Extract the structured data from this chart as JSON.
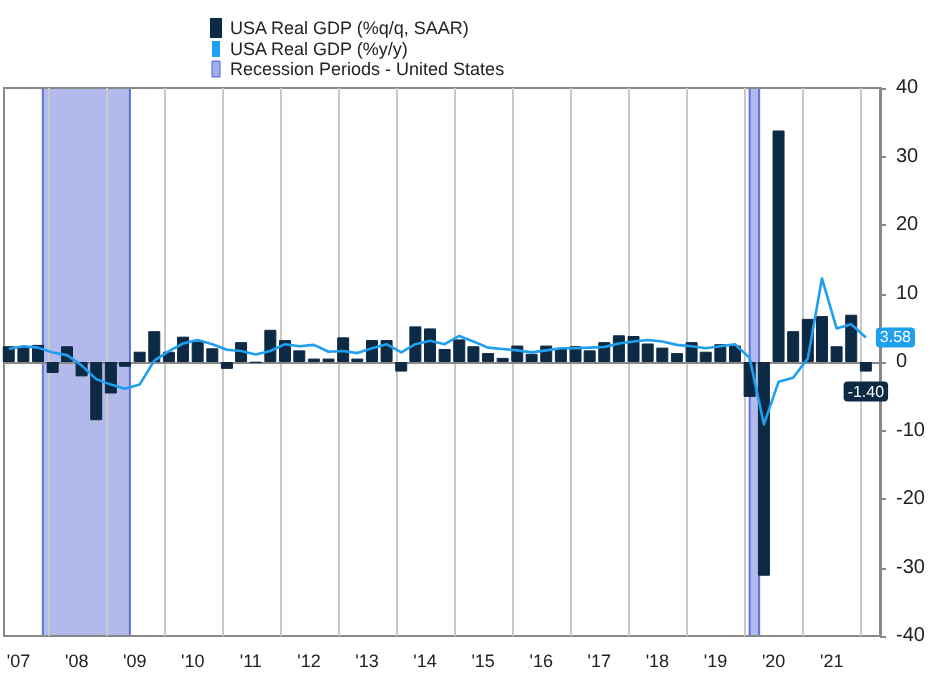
{
  "chart_data": {
    "type": "bar",
    "x": [
      "2007-05",
      "2007-08",
      "2007-11",
      "2008-02",
      "2008-05",
      "2008-08",
      "2008-11",
      "2009-02",
      "2009-05",
      "2009-08",
      "2009-11",
      "2010-02",
      "2010-05",
      "2010-08",
      "2010-11",
      "2011-02",
      "2011-05",
      "2011-08",
      "2011-11",
      "2012-02",
      "2012-05",
      "2012-08",
      "2012-11",
      "2013-02",
      "2013-05",
      "2013-08",
      "2013-11",
      "2014-02",
      "2014-05",
      "2014-08",
      "2014-11",
      "2015-02",
      "2015-05",
      "2015-08",
      "2015-11",
      "2016-02",
      "2016-05",
      "2016-08",
      "2016-11",
      "2017-02",
      "2017-05",
      "2017-08",
      "2017-11",
      "2018-02",
      "2018-05",
      "2018-08",
      "2018-11",
      "2019-02",
      "2019-05",
      "2019-08",
      "2019-11",
      "2020-02",
      "2020-05",
      "2020-08",
      "2020-11",
      "2021-02",
      "2021-05",
      "2021-08",
      "2021-11",
      "2022-02"
    ],
    "series": [
      {
        "name": "USA Real GDP (%q/q, SAAR)",
        "color": "#0d2a45",
        "values": [
          2.3,
          2.2,
          2.5,
          -1.6,
          2.3,
          -2.1,
          -8.5,
          -4.6,
          -0.7,
          1.5,
          4.5,
          1.5,
          3.7,
          3.0,
          2.0,
          -1.0,
          2.9,
          -0.1,
          4.7,
          3.2,
          1.7,
          0.5,
          0.5,
          3.6,
          0.5,
          3.2,
          3.2,
          -1.4,
          5.2,
          4.9,
          1.9,
          3.3,
          2.3,
          1.3,
          0.6,
          2.4,
          1.2,
          2.4,
          2.0,
          2.3,
          1.7,
          2.9,
          3.9,
          3.8,
          2.7,
          2.1,
          1.3,
          2.9,
          1.5,
          2.6,
          2.4,
          -5.1,
          -31.2,
          33.8,
          4.5,
          6.3,
          6.7,
          2.3,
          6.9,
          -1.4
        ],
        "value_labels": [
          null,
          null,
          null,
          null,
          null,
          null,
          null,
          null,
          null,
          null,
          null,
          null,
          null,
          null,
          null,
          null,
          null,
          null,
          null,
          null,
          null,
          null,
          null,
          null,
          null,
          null,
          null,
          null,
          null,
          null,
          null,
          null,
          null,
          null,
          null,
          null,
          null,
          null,
          null,
          null,
          null,
          null,
          null,
          null,
          null,
          null,
          null,
          null,
          null,
          null,
          null,
          null,
          null,
          null,
          null,
          null,
          null,
          null,
          null,
          "-1.40"
        ]
      },
      {
        "name": "USA Real GDP (%y/y)",
        "type": "line",
        "color": "#1e9ff0",
        "values": [
          1.9,
          2.3,
          2.1,
          1.4,
          1.0,
          -0.5,
          -2.5,
          -3.3,
          -3.9,
          -3.3,
          0.2,
          1.6,
          2.7,
          3.2,
          2.6,
          1.8,
          1.6,
          1.1,
          1.6,
          2.6,
          2.3,
          2.5,
          1.5,
          1.6,
          1.3,
          2.0,
          2.6,
          1.4,
          2.6,
          3.1,
          2.6,
          3.8,
          3.0,
          2.1,
          1.9,
          1.7,
          1.4,
          1.7,
          2.0,
          2.0,
          2.1,
          2.2,
          2.7,
          3.0,
          3.2,
          3.0,
          2.5,
          2.3,
          2.0,
          2.3,
          2.6,
          0.6,
          -9.1,
          -2.9,
          -2.3,
          0.5,
          12.2,
          4.9,
          5.5,
          3.58
        ],
        "value_labels": [
          null,
          null,
          null,
          null,
          null,
          null,
          null,
          null,
          null,
          null,
          null,
          null,
          null,
          null,
          null,
          null,
          null,
          null,
          null,
          null,
          null,
          null,
          null,
          null,
          null,
          null,
          null,
          null,
          null,
          null,
          null,
          null,
          null,
          null,
          null,
          null,
          null,
          null,
          null,
          null,
          null,
          null,
          null,
          null,
          null,
          null,
          null,
          null,
          null,
          null,
          null,
          null,
          null,
          null,
          null,
          null,
          null,
          null,
          null,
          "3.58"
        ]
      }
    ],
    "bands": [
      {
        "axis": "x",
        "from": "2007-12",
        "to": "2009-06",
        "label": "Recession Periods - United States",
        "color": "#a3aee8"
      },
      {
        "axis": "x",
        "from": "2020-02",
        "to": "2020-04",
        "color": "#a3aee8"
      }
    ],
    "xlim": [
      "2007-04",
      "2022-05"
    ],
    "xticks": [
      {
        "value": "2007-07",
        "label": "'07"
      },
      {
        "value": "2008-07",
        "label": "'08"
      },
      {
        "value": "2009-07",
        "label": "'09"
      },
      {
        "value": "2010-07",
        "label": "'10"
      },
      {
        "value": "2011-07",
        "label": "'11"
      },
      {
        "value": "2012-07",
        "label": "'12"
      },
      {
        "value": "2013-07",
        "label": "'13"
      },
      {
        "value": "2014-07",
        "label": "'14"
      },
      {
        "value": "2015-07",
        "label": "'15"
      },
      {
        "value": "2016-07",
        "label": "'16"
      },
      {
        "value": "2017-07",
        "label": "'17"
      },
      {
        "value": "2018-07",
        "label": "'18"
      },
      {
        "value": "2019-07",
        "label": "'19"
      },
      {
        "value": "2020-07",
        "label": "'20"
      },
      {
        "value": "2021-07",
        "label": "'21"
      },
      {
        "value": "2008-01",
        "label": null
      },
      {
        "value": "2009-01",
        "label": null
      },
      {
        "value": "2010-01",
        "label": null
      },
      {
        "value": "2011-01",
        "label": null
      },
      {
        "value": "2012-01",
        "label": null
      },
      {
        "value": "2013-01",
        "label": null
      },
      {
        "value": "2014-01",
        "label": null
      },
      {
        "value": "2015-01",
        "label": null
      },
      {
        "value": "2016-01",
        "label": null
      },
      {
        "value": "2017-01",
        "label": null
      },
      {
        "value": "2018-01",
        "label": null
      },
      {
        "value": "2019-01",
        "label": null
      },
      {
        "value": "2020-01",
        "label": null
      },
      {
        "value": "2021-01",
        "label": null
      },
      {
        "value": "2022-01",
        "label": null
      }
    ],
    "ylim": [
      -40,
      40
    ],
    "yticks": [
      -40,
      -30,
      -20,
      -10,
      0,
      10,
      20,
      30,
      40
    ],
    "grid": "x",
    "legend": "top",
    "marker": "none"
  }
}
